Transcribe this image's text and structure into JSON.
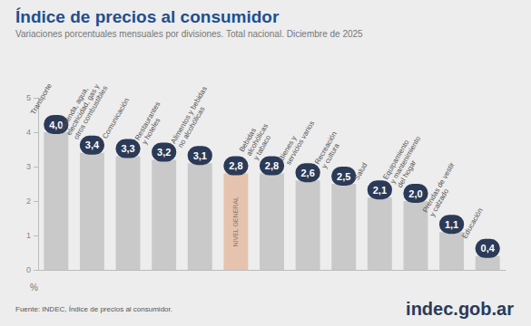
{
  "chart_data": {
    "type": "bar",
    "title": "Índice de precios al consumidor",
    "subtitle": "Variaciones porcentuales mensuales por divisiones. Total nacional. Diciembre de 2025",
    "source": "Fuente: INDEC, Índice de precios al consumidor.",
    "credit": "indec.gob.ar",
    "y_label": "%",
    "categories": [
      "Transporte",
      "Vivienda, agua,\nelectricidad, gas y\notros combustibles",
      "Comunicación",
      "Restaurantes\ny hoteles",
      "Alimentos y bebidas\nno alcohólicas",
      "NIVEL GENERAL",
      "Bebidas\nalcohólicas\ny tabaco",
      "Bienes y\nservicios varios",
      "Recreación\ny cultura",
      "Salud",
      "Equipamiento\ny mantenimiento\ndel hogar",
      "Prendas de vestir\ny calzado",
      "Educación"
    ],
    "values": [
      4.0,
      3.4,
      3.3,
      3.2,
      3.1,
      2.8,
      2.8,
      2.6,
      2.5,
      2.1,
      2.0,
      1.1,
      0.4
    ],
    "value_labels": [
      "4,0",
      "3,4",
      "3,3",
      "3,2",
      "3,1",
      "2,8",
      "2,8",
      "2,6",
      "2,5",
      "2,1",
      "2,0",
      "1,1",
      "0,4"
    ],
    "colors": [
      "#c9c9c9",
      "#c9c9c9",
      "#c9c9c9",
      "#c9c9c9",
      "#c9c9c9",
      "#e6c3ae",
      "#c9c9c9",
      "#c9c9c9",
      "#c9c9c9",
      "#c9c9c9",
      "#c9c9c9",
      "#c9c9c9",
      "#c9c9c9"
    ],
    "ylim": [
      0,
      5
    ],
    "yticks": [
      0,
      1,
      2,
      3,
      4,
      5
    ],
    "grid": false,
    "data_labels": true,
    "tick_labels": "y"
  }
}
